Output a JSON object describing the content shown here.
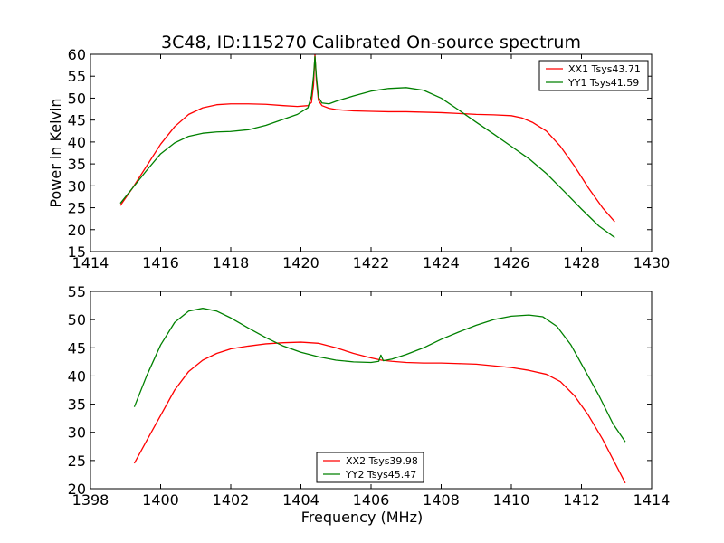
{
  "figure": {
    "title": "3C48, ID:115270 Calibrated On-source spectrum"
  },
  "colors": {
    "xx": "#ff0000",
    "yy": "#008000",
    "axes": "#000000",
    "background": "#ffffff"
  },
  "chart_data": [
    {
      "type": "line",
      "title": "3C48, ID:115270 Calibrated On-source spectrum",
      "xlabel": "",
      "ylabel": "Power in Kelvin",
      "xlim": [
        1414,
        1430
      ],
      "ylim": [
        15,
        60
      ],
      "xticks": [
        1414,
        1416,
        1418,
        1420,
        1422,
        1424,
        1426,
        1428,
        1430
      ],
      "yticks": [
        15,
        20,
        25,
        30,
        35,
        40,
        45,
        50,
        55,
        60
      ],
      "grid": false,
      "legend_position": "top-right",
      "series": [
        {
          "name": "XX1 Tsys43.71",
          "color": "#ff0000",
          "x": [
            1414.85,
            1415.2,
            1415.6,
            1416.0,
            1416.4,
            1416.8,
            1417.2,
            1417.6,
            1418.0,
            1418.5,
            1419.0,
            1419.5,
            1419.9,
            1420.2,
            1420.3,
            1420.36,
            1420.4,
            1420.44,
            1420.5,
            1420.6,
            1420.8,
            1421.0,
            1421.5,
            1422.0,
            1422.5,
            1423.0,
            1423.5,
            1424.0,
            1424.5,
            1425.0,
            1425.5,
            1426.0,
            1426.3,
            1426.6,
            1427.0,
            1427.4,
            1427.8,
            1428.2,
            1428.6,
            1428.95
          ],
          "y": [
            25.5,
            29.5,
            34.5,
            39.5,
            43.5,
            46.3,
            47.8,
            48.5,
            48.7,
            48.7,
            48.6,
            48.3,
            48.1,
            48.3,
            49.0,
            53.0,
            60.0,
            54.0,
            49.5,
            48.3,
            47.7,
            47.4,
            47.1,
            47.0,
            46.9,
            46.9,
            46.8,
            46.7,
            46.5,
            46.3,
            46.2,
            46.0,
            45.5,
            44.5,
            42.5,
            39.0,
            34.5,
            29.5,
            25.0,
            21.8
          ]
        },
        {
          "name": "YY1 Tsys41.59",
          "color": "#008000",
          "x": [
            1414.85,
            1415.2,
            1415.6,
            1416.0,
            1416.4,
            1416.8,
            1417.2,
            1417.6,
            1418.0,
            1418.5,
            1419.0,
            1419.5,
            1419.9,
            1420.2,
            1420.3,
            1420.36,
            1420.4,
            1420.44,
            1420.5,
            1420.6,
            1420.8,
            1421.0,
            1421.5,
            1422.0,
            1422.5,
            1423.0,
            1423.5,
            1424.0,
            1424.5,
            1425.0,
            1425.5,
            1426.0,
            1426.5,
            1427.0,
            1427.5,
            1428.0,
            1428.5,
            1428.95
          ],
          "y": [
            26.0,
            29.5,
            33.5,
            37.3,
            39.8,
            41.3,
            42.0,
            42.3,
            42.4,
            42.8,
            43.8,
            45.2,
            46.3,
            47.8,
            50.5,
            55.0,
            59.5,
            55.0,
            50.2,
            48.9,
            48.7,
            49.3,
            50.5,
            51.6,
            52.2,
            52.4,
            51.8,
            50.0,
            47.3,
            44.5,
            41.8,
            39.0,
            36.2,
            32.8,
            28.8,
            24.7,
            20.8,
            18.2
          ]
        }
      ]
    },
    {
      "type": "line",
      "title": "",
      "xlabel": "Frequency (MHz)",
      "ylabel": "",
      "xlim": [
        1398,
        1414
      ],
      "ylim": [
        20,
        55
      ],
      "xticks": [
        1398,
        1400,
        1402,
        1404,
        1406,
        1408,
        1410,
        1412,
        1414
      ],
      "yticks": [
        20,
        25,
        30,
        35,
        40,
        45,
        50,
        55
      ],
      "grid": false,
      "legend_position": "bottom-center",
      "series": [
        {
          "name": "XX2 Tsys39.98",
          "color": "#ff0000",
          "x": [
            1399.25,
            1399.6,
            1400.0,
            1400.4,
            1400.8,
            1401.2,
            1401.6,
            1402.0,
            1402.5,
            1403.0,
            1403.5,
            1404.0,
            1404.5,
            1405.0,
            1405.5,
            1406.0,
            1406.3,
            1406.6,
            1407.0,
            1407.5,
            1408.0,
            1408.5,
            1409.0,
            1409.5,
            1410.0,
            1410.5,
            1411.0,
            1411.4,
            1411.8,
            1412.2,
            1412.6,
            1413.0,
            1413.25
          ],
          "y": [
            24.5,
            28.5,
            33.0,
            37.5,
            40.8,
            42.8,
            44.0,
            44.8,
            45.3,
            45.7,
            45.9,
            46.0,
            45.8,
            45.0,
            44.0,
            43.2,
            42.8,
            42.6,
            42.4,
            42.3,
            42.3,
            42.2,
            42.1,
            41.8,
            41.5,
            41.0,
            40.3,
            39.0,
            36.5,
            33.0,
            28.8,
            24.0,
            21.0
          ]
        },
        {
          "name": "YY2 Tsys45.47",
          "color": "#008000",
          "x": [
            1399.25,
            1399.6,
            1400.0,
            1400.4,
            1400.8,
            1401.2,
            1401.6,
            1402.0,
            1402.5,
            1403.0,
            1403.5,
            1404.0,
            1404.5,
            1405.0,
            1405.5,
            1406.0,
            1406.22,
            1406.28,
            1406.35,
            1406.6,
            1407.0,
            1407.5,
            1408.0,
            1408.5,
            1409.0,
            1409.5,
            1410.0,
            1410.5,
            1410.9,
            1411.3,
            1411.7,
            1412.1,
            1412.5,
            1412.9,
            1413.25
          ],
          "y": [
            34.5,
            40.0,
            45.5,
            49.5,
            51.5,
            52.0,
            51.5,
            50.3,
            48.5,
            46.8,
            45.3,
            44.2,
            43.4,
            42.8,
            42.5,
            42.4,
            42.6,
            43.7,
            42.7,
            43.0,
            43.8,
            45.0,
            46.5,
            47.8,
            49.0,
            50.0,
            50.6,
            50.8,
            50.5,
            48.8,
            45.5,
            41.0,
            36.5,
            31.5,
            28.3
          ]
        }
      ]
    }
  ]
}
